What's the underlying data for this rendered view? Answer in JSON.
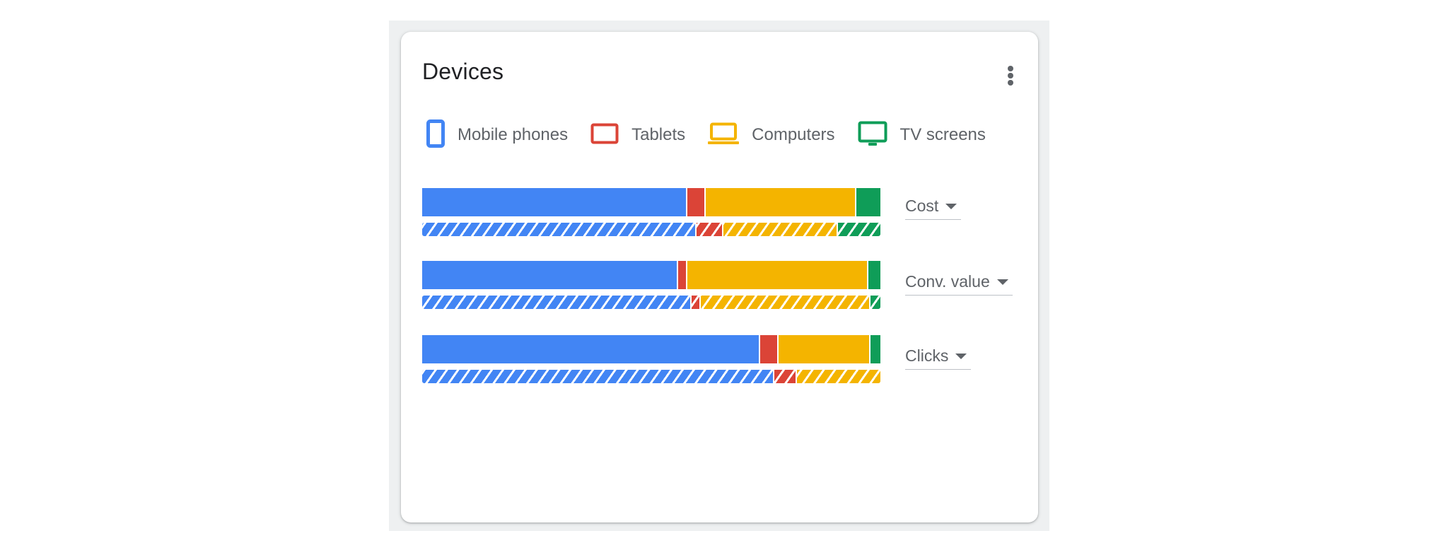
{
  "card": {
    "title": "Devices",
    "more_menu": "more-vert-icon"
  },
  "legend": [
    {
      "label": "Mobile phones",
      "icon": "smartphone-icon",
      "color": "#4285F4"
    },
    {
      "label": "Tablets",
      "icon": "tablet-icon",
      "color": "#DB4437"
    },
    {
      "label": "Computers",
      "icon": "laptop-icon",
      "color": "#F4B400"
    },
    {
      "label": "TV screens",
      "icon": "tv-icon",
      "color": "#0F9D58"
    }
  ],
  "metrics": [
    {
      "label": "Cost",
      "current_shares": [
        0.575,
        0.04,
        0.33,
        0.055
      ],
      "comparison_shares": [
        0.595,
        0.06,
        0.25,
        0.095
      ]
    },
    {
      "label": "Conv. value",
      "current_shares": [
        0.555,
        0.02,
        0.395,
        0.03
      ],
      "comparison_shares": [
        0.585,
        0.02,
        0.37,
        0.025
      ]
    },
    {
      "label": "Clicks",
      "current_shares": [
        0.735,
        0.04,
        0.2,
        0.025
      ],
      "comparison_shares": [
        0.765,
        0.05,
        0.185,
        0.0
      ]
    }
  ]
}
